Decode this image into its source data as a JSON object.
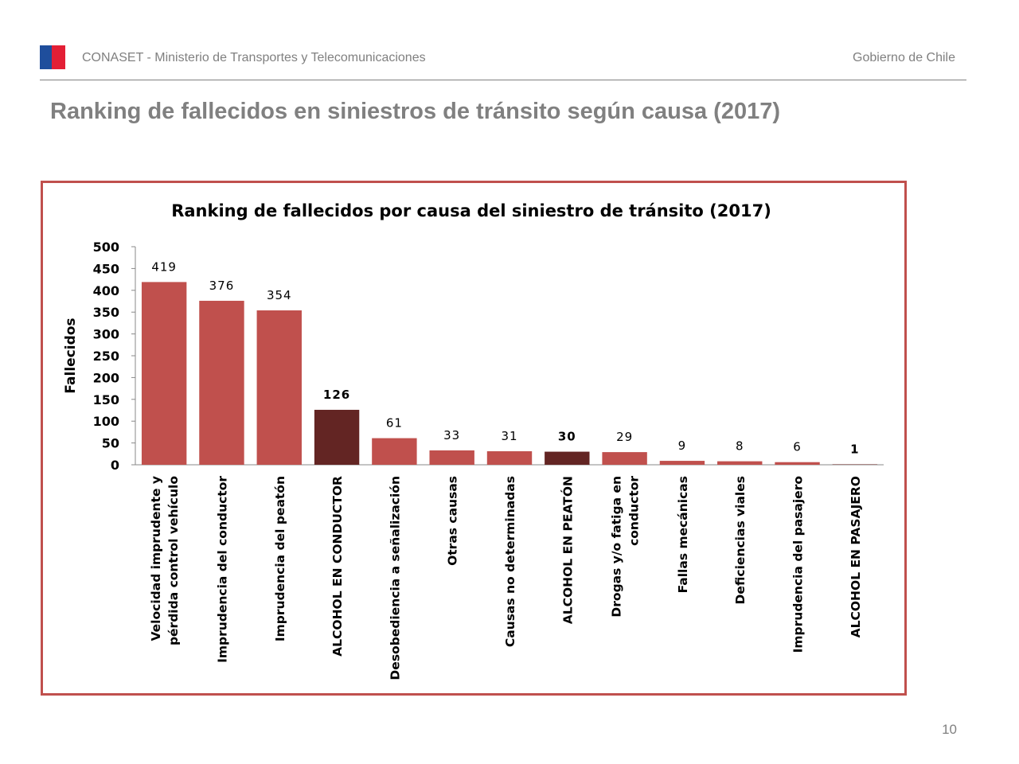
{
  "header": {
    "org": "CONASET - Ministerio de Transportes y Telecomunicaciones",
    "gov": "Gobierno de Chile"
  },
  "slide": {
    "title": "Ranking de fallecidos en siniestros de tránsito según causa (2017)",
    "page_number": "10"
  },
  "colors": {
    "bar": "#c0504d",
    "highlight": "#632523",
    "frame": "#c0504d"
  },
  "chart_data": {
    "type": "bar",
    "title": "Ranking de fallecidos por causa del siniestro de tránsito (2017)",
    "xlabel": "",
    "ylabel": "Fallecidos",
    "ylim": [
      0,
      500
    ],
    "yticks": [
      0,
      50,
      100,
      150,
      200,
      250,
      300,
      350,
      400,
      450,
      500
    ],
    "grid": false,
    "categories": [
      "Velocidad imprudente y pérdida control vehículo",
      "Imprudencia del conductor",
      "Imprudencia del peatón",
      "ALCOHOL EN CONDUCTOR",
      "Desobediencia a señalización",
      "Otras causas",
      "Causas no determinadas",
      "ALCOHOL EN PEATÓN",
      "Drogas y/o fatiga en conductor",
      "Fallas mecánicas",
      "Deficiencias viales",
      "Imprudencia del pasajero",
      "ALCOHOL EN PASAJERO"
    ],
    "category_lines": [
      [
        "Velocidad imprudente y",
        "pérdida control vehículo"
      ],
      [
        "Imprudencia del conductor"
      ],
      [
        "Imprudencia del peatón"
      ],
      [
        "ALCOHOL EN CONDUCTOR"
      ],
      [
        "Desobediencia a señalización"
      ],
      [
        "Otras causas"
      ],
      [
        "Causas no determinadas"
      ],
      [
        "ALCOHOL EN PEATÓN"
      ],
      [
        "Drogas y/o fatiga en",
        "conductor"
      ],
      [
        "Fallas mecánicas"
      ],
      [
        "Deficiencias viales"
      ],
      [
        "Imprudencia del pasajero"
      ],
      [
        "ALCOHOL EN PASAJERO"
      ]
    ],
    "values": [
      419,
      376,
      354,
      126,
      61,
      33,
      31,
      30,
      29,
      9,
      8,
      6,
      1
    ],
    "highlighted": [
      false,
      false,
      false,
      true,
      false,
      false,
      false,
      true,
      false,
      false,
      false,
      false,
      true
    ]
  }
}
